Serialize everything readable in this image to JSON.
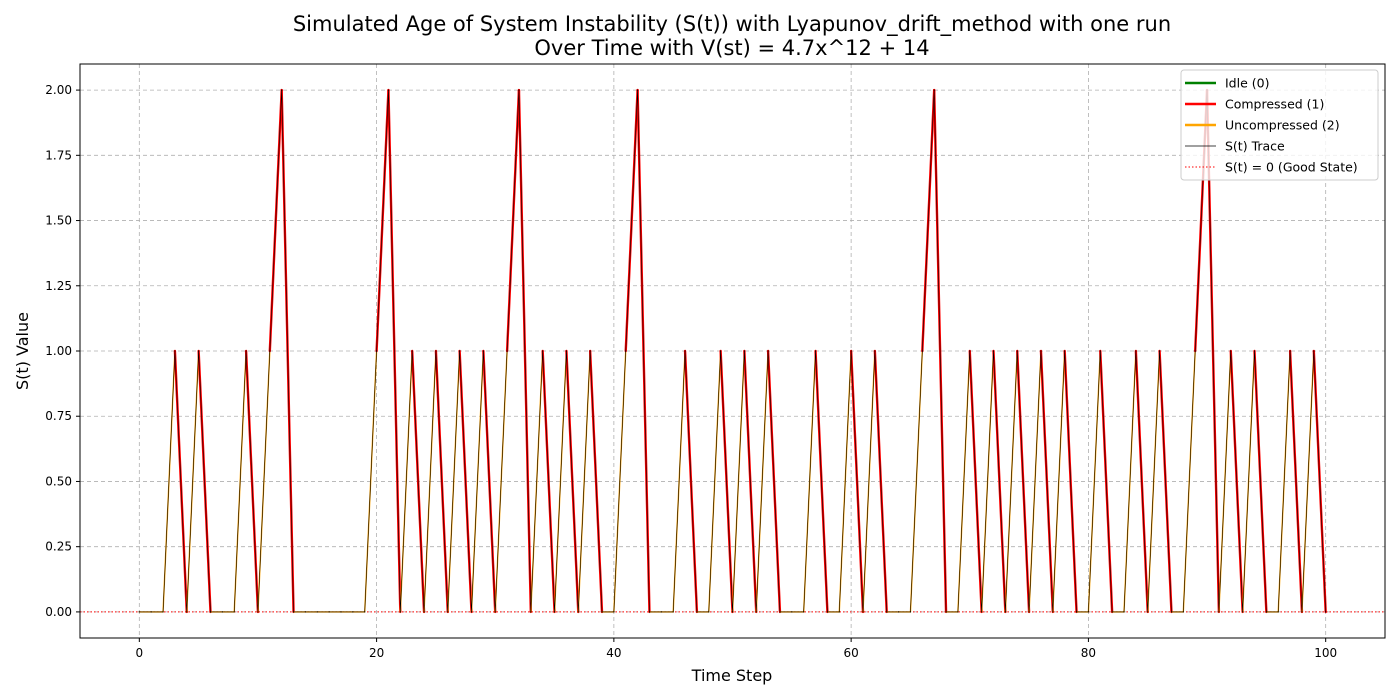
{
  "chart_data": {
    "type": "line",
    "title_line1": "Simulated Age of System Instability (S(t)) with Lyapunov_drift_method with one run",
    "title_line2": "Over Time with V(st) = 4.7x^12 + 14",
    "xlabel": "Time Step",
    "ylabel": "S(t) Value",
    "xlim": [
      -5,
      105
    ],
    "ylim": [
      -0.1,
      2.1
    ],
    "xticks": [
      0,
      20,
      40,
      60,
      80,
      100
    ],
    "xtick_labels": [
      "0",
      "20",
      "40",
      "60",
      "80",
      "100"
    ],
    "yticks": [
      0.0,
      0.25,
      0.5,
      0.75,
      1.0,
      1.25,
      1.5,
      1.75,
      2.0
    ],
    "ytick_labels": [
      "0.00",
      "0.25",
      "0.50",
      "0.75",
      "1.00",
      "1.25",
      "1.50",
      "1.75",
      "2.00"
    ],
    "grid": true,
    "legend_position": "top-right",
    "x": [
      0,
      1,
      2,
      3,
      4,
      5,
      6,
      7,
      8,
      9,
      10,
      11,
      12,
      13,
      14,
      15,
      16,
      17,
      18,
      19,
      20,
      21,
      22,
      23,
      24,
      25,
      26,
      27,
      28,
      29,
      30,
      31,
      32,
      33,
      34,
      35,
      36,
      37,
      38,
      39,
      40,
      41,
      42,
      43,
      44,
      45,
      46,
      47,
      48,
      49,
      50,
      51,
      52,
      53,
      54,
      55,
      56,
      57,
      58,
      59,
      60,
      61,
      62,
      63,
      64,
      65,
      66,
      67,
      68,
      69,
      70,
      71,
      72,
      73,
      74,
      75,
      76,
      77,
      78,
      79,
      80,
      81,
      82,
      83,
      84,
      85,
      86,
      87,
      88,
      89,
      90,
      91,
      92,
      93,
      94,
      95,
      96,
      97,
      98,
      99,
      100
    ],
    "y": [
      0,
      0,
      0,
      1,
      0,
      1,
      0,
      0,
      0,
      1,
      0,
      1,
      2,
      0,
      0,
      0,
      0,
      0,
      0,
      0,
      1,
      2,
      0,
      1,
      0,
      1,
      0,
      1,
      0,
      1,
      0,
      1,
      2,
      0,
      1,
      0,
      1,
      0,
      1,
      0,
      0,
      1,
      2,
      0,
      0,
      0,
      1,
      0,
      0,
      1,
      0,
      1,
      0,
      1,
      0,
      0,
      0,
      1,
      0,
      0,
      1,
      0,
      1,
      0,
      0,
      0,
      1,
      2,
      0,
      0,
      1,
      0,
      1,
      0,
      1,
      0,
      1,
      0,
      1,
      0,
      0,
      1,
      0,
      0,
      1,
      0,
      1,
      0,
      0,
      1,
      2,
      0,
      1,
      0,
      1,
      0,
      0,
      1,
      0,
      1,
      0
    ],
    "series": [
      {
        "name": "Idle (0)",
        "color": "#008000",
        "style": "solid"
      },
      {
        "name": "Compressed (1)",
        "color": "#ff0000",
        "style": "solid"
      },
      {
        "name": "Uncompressed (2)",
        "color": "#ffa500",
        "style": "solid"
      },
      {
        "name": "S(t) Trace",
        "color": "#000000",
        "style": "thin"
      },
      {
        "name": "S(t) = 0 (Good State)",
        "color": "#ff0000",
        "style": "dotted"
      }
    ]
  }
}
